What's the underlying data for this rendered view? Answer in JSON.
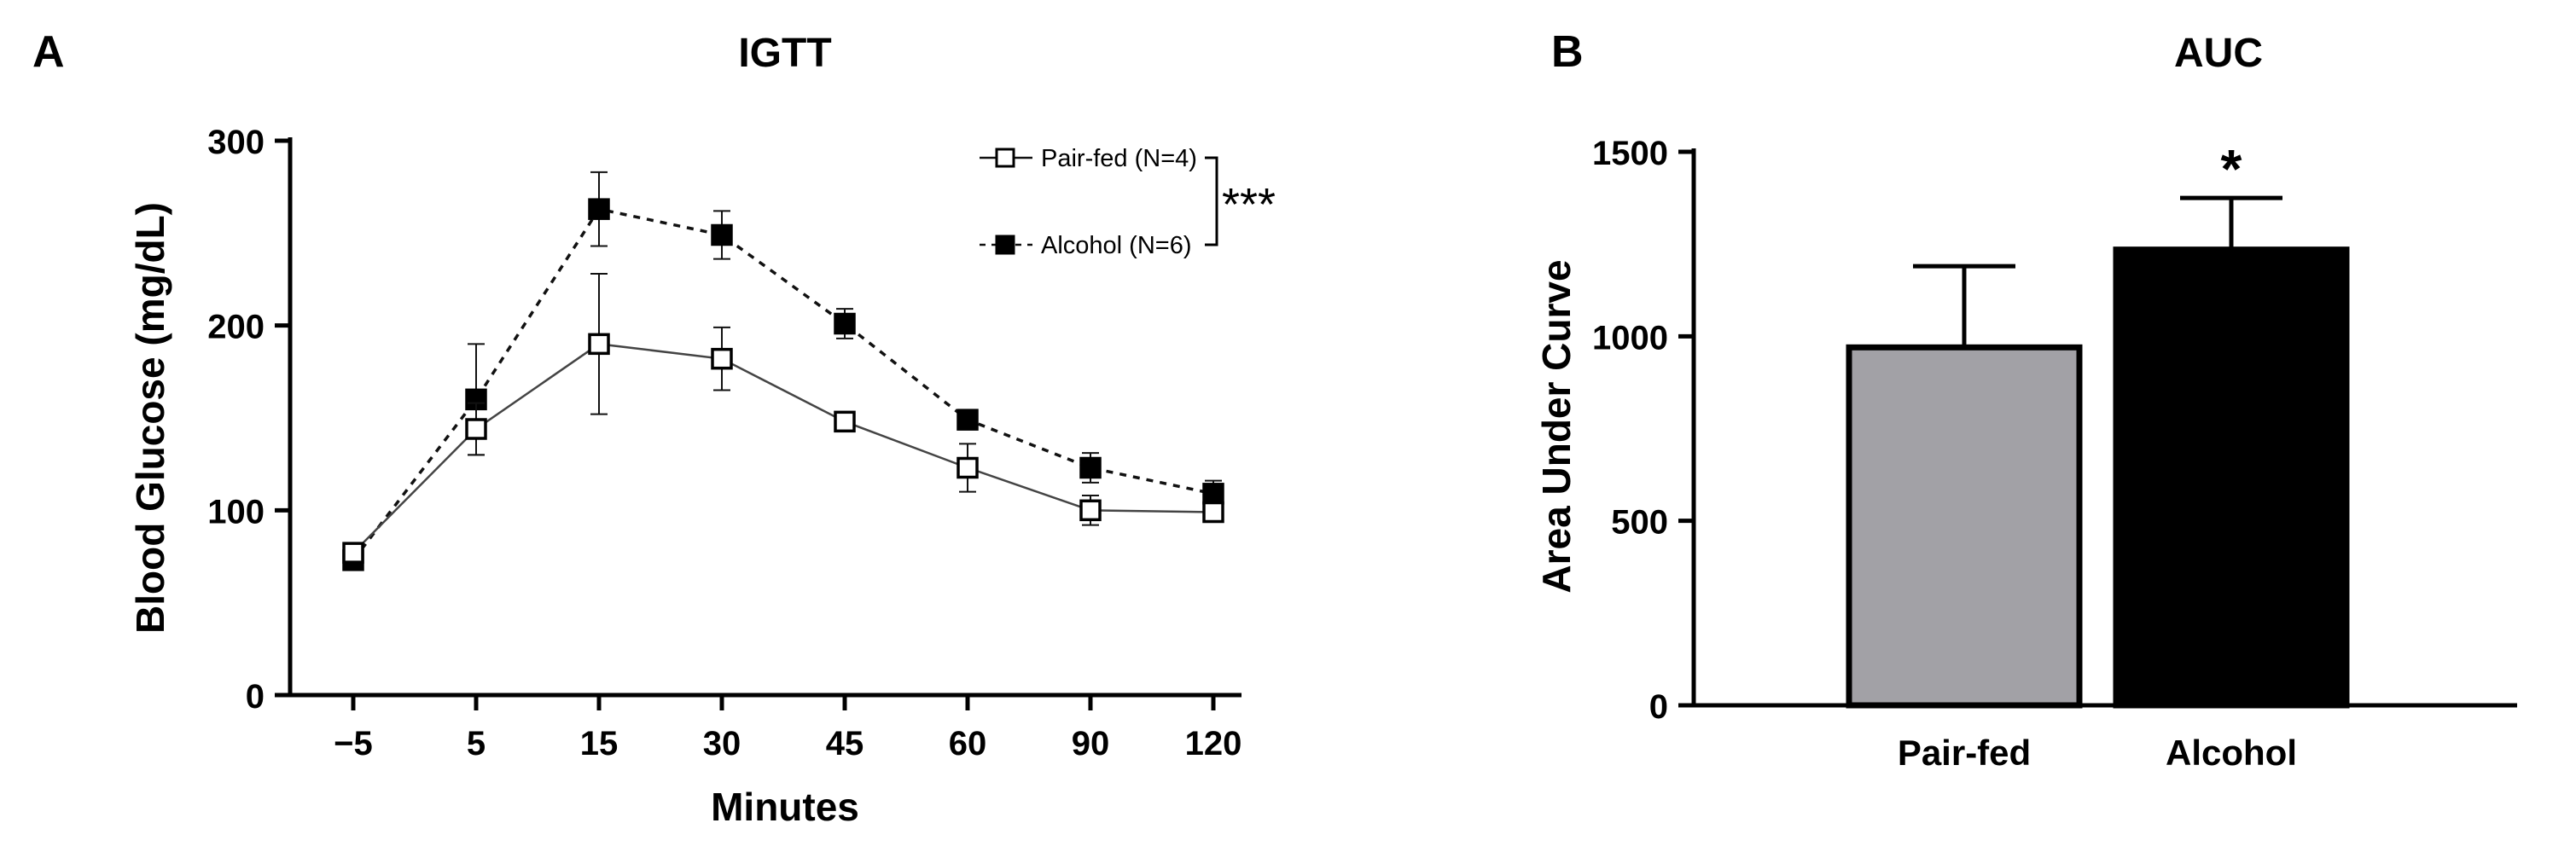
{
  "panels": {
    "a": {
      "letter": "A"
    },
    "b": {
      "letter": "B"
    }
  },
  "chart_data": [
    {
      "type": "line",
      "title": "IGTT",
      "xlabel": "Minutes",
      "ylabel": "Blood Glucose (mg/dL)",
      "categories": [
        "−5",
        "5",
        "15",
        "30",
        "45",
        "60",
        "90",
        "120"
      ],
      "ylim": [
        0,
        300
      ],
      "yticks": [
        0,
        100,
        200,
        300
      ],
      "grid": false,
      "legend_position": "top-right",
      "significance": "***",
      "series": [
        {
          "name": "Pair-fed (N=4)",
          "marker": "open-square",
          "line": "solid",
          "values": [
            77,
            144,
            190,
            182,
            148,
            123,
            100,
            99
          ],
          "error": [
            3,
            14,
            38,
            17,
            5,
            13,
            8,
            4
          ]
        },
        {
          "name": "Alcohol (N=6)",
          "marker": "filled-square",
          "line": "dashed",
          "values": [
            73,
            160,
            263,
            249,
            201,
            149,
            123,
            109
          ],
          "error": [
            3,
            30,
            20,
            13,
            8,
            3,
            8,
            7
          ]
        }
      ]
    },
    {
      "type": "bar",
      "title": "AUC",
      "xlabel": "",
      "ylabel": "Area Under Curve",
      "categories": [
        "Pair-fed",
        "Alcohol"
      ],
      "values": [
        970,
        1235
      ],
      "error": [
        220,
        140
      ],
      "colors": [
        "#a2a1a6",
        "#000000"
      ],
      "ylim": [
        0,
        1500
      ],
      "yticks": [
        0,
        500,
        1000,
        1500
      ],
      "grid": false,
      "annotations": [
        {
          "category": "Alcohol",
          "text": "*"
        }
      ]
    }
  ]
}
